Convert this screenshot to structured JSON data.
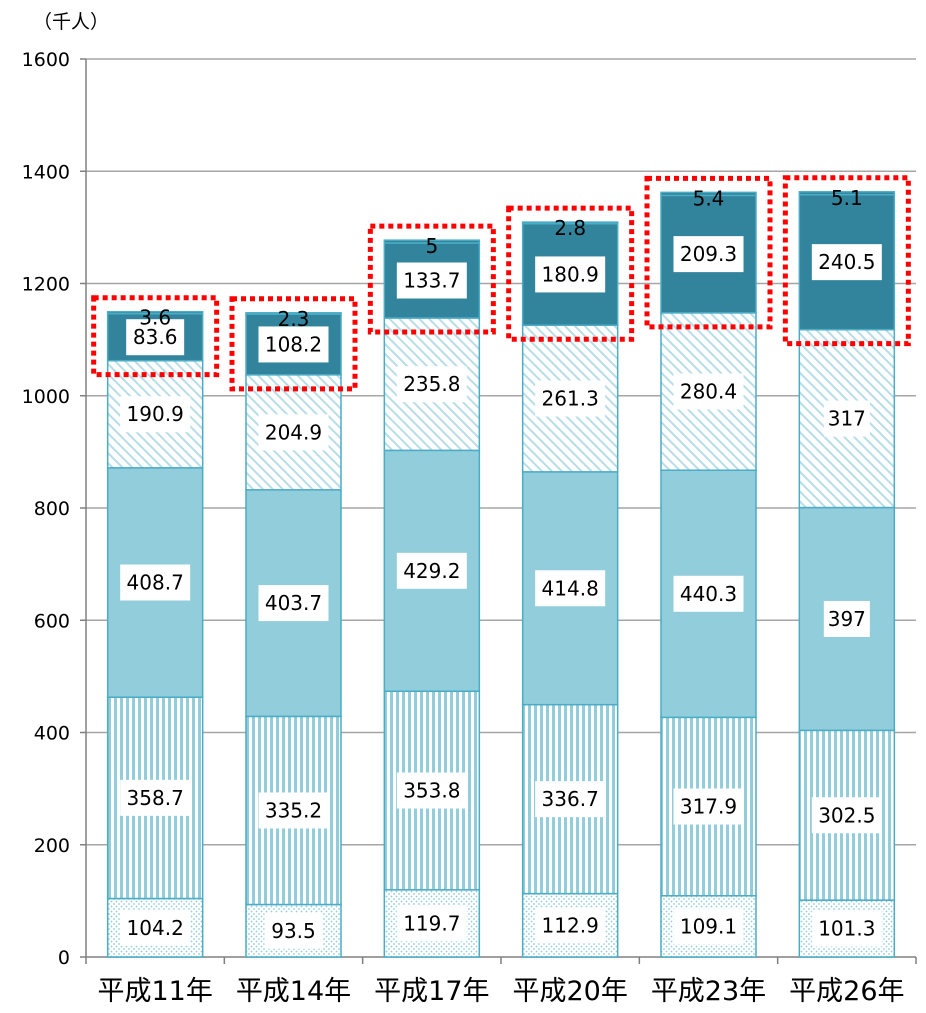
{
  "chart_data": {
    "type": "bar",
    "stacked": true,
    "unit_label": "（千人）",
    "categories": [
      "平成11年",
      "平成14年",
      "平成17年",
      "平成20年",
      "平成23年",
      "平成26年"
    ],
    "ylim": [
      0,
      1600
    ],
    "yticks": [
      0,
      200,
      400,
      600,
      800,
      1000,
      1200,
      1400,
      1600
    ],
    "grid": true,
    "legend": "none",
    "series": [
      {
        "values": [
          104.2,
          93.5,
          119.7,
          112.9,
          109.1,
          101.3
        ],
        "labels": [
          "104.2",
          "93.5",
          "119.7",
          "112.9",
          "109.1",
          "101.3"
        ],
        "color": "#ffffff",
        "pattern": "dots"
      },
      {
        "values": [
          358.7,
          335.2,
          353.8,
          336.7,
          317.9,
          302.5
        ],
        "labels": [
          "358.7",
          "335.2",
          "353.8",
          "336.7",
          "317.9",
          "302.5"
        ],
        "color": "#ffffff",
        "pattern": "vertical-stripes"
      },
      {
        "values": [
          408.7,
          403.7,
          429.2,
          414.8,
          440.3,
          397
        ],
        "labels": [
          "408.7",
          "403.7",
          "429.2",
          "414.8",
          "440.3",
          "397"
        ],
        "color": "#92cddc",
        "pattern": "solid"
      },
      {
        "values": [
          190.9,
          204.9,
          235.8,
          261.3,
          280.4,
          317
        ],
        "labels": [
          "190.9",
          "204.9",
          "235.8",
          "261.3",
          "280.4",
          "317"
        ],
        "color": "#ffffff",
        "pattern": "diagonal-stripes"
      },
      {
        "values": [
          83.6,
          108.2,
          133.7,
          180.9,
          209.3,
          240.5
        ],
        "labels": [
          "83.6",
          "108.2",
          "133.7",
          "180.9",
          "209.3",
          "240.5"
        ],
        "color": "#31849b",
        "pattern": "solid"
      },
      {
        "values": [
          3.6,
          2.3,
          5,
          2.8,
          5.4,
          5.1
        ],
        "labels": [
          "3.6",
          "2.3",
          "5",
          "2.8",
          "5.4",
          "5.1"
        ],
        "color": "#31849b",
        "pattern": "solid"
      }
    ],
    "highlight": {
      "series_indices": [
        4,
        5
      ],
      "style": "red-dotted-box",
      "color": "#ff0000"
    }
  }
}
